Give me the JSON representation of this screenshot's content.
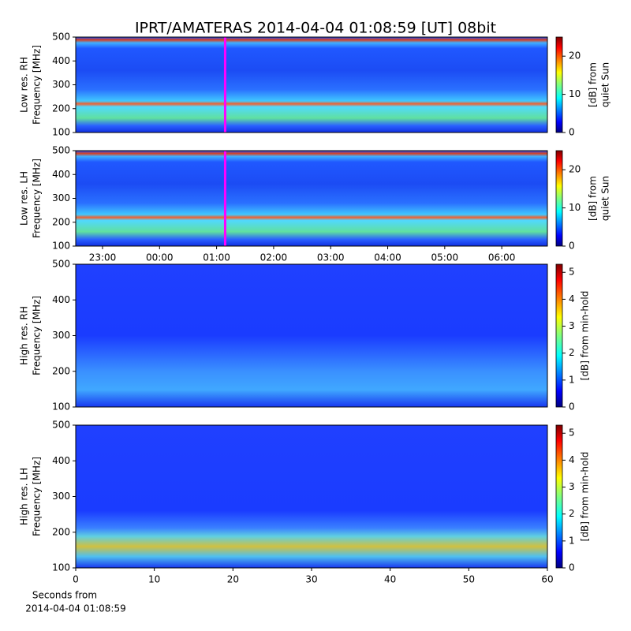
{
  "title": "IPRT/AMATERAS 2014-04-04 01:08:59 [UT]   08bit",
  "chart_data": [
    {
      "type": "heatmap",
      "ylabel": [
        "Low res. RH",
        "Frequency [MHz]"
      ],
      "ylim": [
        100,
        500
      ],
      "yticks": [
        100,
        200,
        300,
        400,
        500
      ],
      "xlim": [
        -1.47,
        6.8
      ],
      "clabel": [
        "[dB] from",
        "quiet Sun"
      ],
      "clim": [
        0,
        25
      ],
      "cticks": [
        0,
        10,
        20
      ],
      "marker": {
        "x": 1.15,
        "color": "#ff00ff"
      }
    },
    {
      "type": "heatmap",
      "ylabel": [
        "Low res. LH",
        "Frequency [MHz]"
      ],
      "ylim": [
        100,
        500
      ],
      "yticks": [
        100,
        200,
        300,
        400,
        500
      ],
      "xlim": [
        -1.47,
        6.8
      ],
      "xticks": [
        {
          "value": -1,
          "label": "23:00"
        },
        {
          "value": 0,
          "label": "00:00"
        },
        {
          "value": 1,
          "label": "01:00"
        },
        {
          "value": 2,
          "label": "02:00"
        },
        {
          "value": 3,
          "label": "03:00"
        },
        {
          "value": 4,
          "label": "04:00"
        },
        {
          "value": 5,
          "label": "05:00"
        },
        {
          "value": 6,
          "label": "06:00"
        }
      ],
      "clabel": [
        "[dB] from",
        "quiet Sun"
      ],
      "clim": [
        0,
        25
      ],
      "cticks": [
        0,
        10,
        20
      ],
      "marker": {
        "x": 1.15,
        "color": "#ff00ff"
      }
    },
    {
      "type": "heatmap",
      "ylabel": [
        "High res. RH",
        "Frequency [MHz]"
      ],
      "ylim": [
        100,
        500
      ],
      "yticks": [
        100,
        200,
        300,
        400,
        500
      ],
      "xlim": [
        0,
        60
      ],
      "clabel": [
        "[dB] from min-hold"
      ],
      "clim": [
        0,
        5.3
      ],
      "cticks": [
        0,
        1,
        2,
        3,
        4,
        5
      ]
    },
    {
      "type": "heatmap",
      "ylabel": [
        "High res. LH",
        "Frequency [MHz]"
      ],
      "ylim": [
        100,
        500
      ],
      "yticks": [
        100,
        200,
        300,
        400,
        500
      ],
      "xlim": [
        0,
        60
      ],
      "xticks": [
        0,
        10,
        20,
        30,
        40,
        50,
        60
      ],
      "xlabel": [
        "Seconds from",
        "2014-04-04 01:08:59"
      ],
      "clabel": [
        "[dB] from min-hold"
      ],
      "clim": [
        0,
        5.3
      ],
      "cticks": [
        0,
        1,
        2,
        3,
        4,
        5
      ]
    }
  ]
}
